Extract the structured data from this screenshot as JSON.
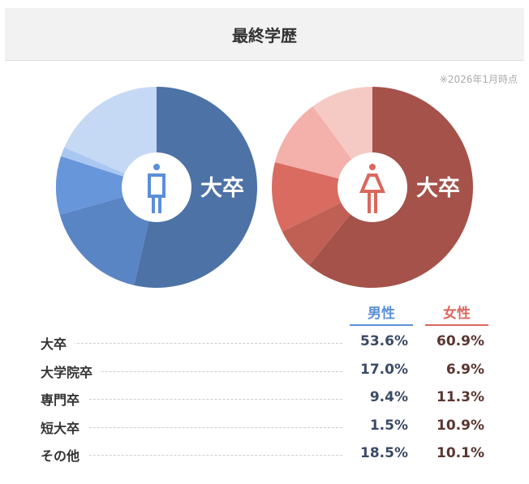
{
  "title": "最終学歴",
  "note": "※2026年1月時点",
  "chart_data": {
    "type": "pie",
    "categories": [
      "大卒",
      "大学院卒",
      "専門卒",
      "短大卒",
      "その他"
    ],
    "series": [
      {
        "name": "男性",
        "values": [
          53.6,
          17.0,
          9.4,
          1.5,
          18.5
        ],
        "colors": [
          "#4d72a6",
          "#5a85c4",
          "#6896da",
          "#a9c7f0",
          "#c5d9f4"
        ],
        "icon": "male-icon",
        "accent": "#5b8fd6"
      },
      {
        "name": "女性",
        "values": [
          60.9,
          6.9,
          11.3,
          10.9,
          10.1
        ],
        "colors": [
          "#a4524a",
          "#c06055",
          "#d96b60",
          "#f4b0aa",
          "#f5cac5"
        ],
        "icon": "female-icon",
        "accent": "#d9685e"
      }
    ],
    "center_label": "大卒"
  },
  "table": {
    "headers": [
      "男性",
      "女性"
    ],
    "rows": [
      {
        "label": "大卒",
        "male": "53.6%",
        "female": "60.9%"
      },
      {
        "label": "大学院卒",
        "male": "17.0%",
        "female": "6.9%"
      },
      {
        "label": "専門卒",
        "male": "9.4%",
        "female": "11.3%"
      },
      {
        "label": "短大卒",
        "male": "1.5%",
        "female": "10.9%"
      },
      {
        "label": "その他",
        "male": "18.5%",
        "female": "10.1%"
      }
    ]
  }
}
